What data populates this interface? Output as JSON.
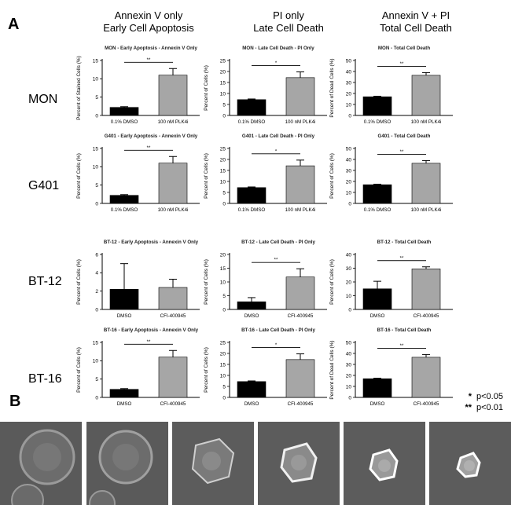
{
  "panel_labels": {
    "a": "A",
    "b": "B"
  },
  "columns": [
    {
      "line1": "Annexin V only",
      "line2": "Early Cell Apoptosis"
    },
    {
      "line1": "PI only",
      "line2": "Late Cell Death"
    },
    {
      "line1": "Annexin V + PI",
      "line2": "Total Cell Death"
    }
  ],
  "rows": [
    "MON",
    "G401",
    "BT-12",
    "BT-16"
  ],
  "legend": [
    {
      "stars": "*",
      "label": "p<0.05"
    },
    {
      "stars": "**",
      "label": "p<0.01"
    }
  ],
  "colors": {
    "control": "#000000",
    "treated": "#a6a6a6"
  },
  "chart_data": [
    {
      "type": "bar",
      "title": "MON - Early Apoptosis - Annexin V Only",
      "ylabel": "Percent of Stained Cells (%)",
      "categories": [
        "0.1% DMSO",
        "100 nM PLK4i"
      ],
      "values": [
        2.2,
        11
      ],
      "errors": [
        0.2,
        1.8
      ],
      "ylim": [
        0,
        15
      ],
      "yticks": [
        0,
        5,
        10,
        15
      ],
      "sig": "**"
    },
    {
      "type": "bar",
      "title": "MON - Late Cell Death - PI Only",
      "ylabel": "Percent of Cells (%)",
      "categories": [
        "0.1% DMSO",
        "100 nM PLK4i"
      ],
      "values": [
        7.2,
        17.2
      ],
      "errors": [
        0.3,
        2.6
      ],
      "ylim": [
        0,
        25
      ],
      "yticks": [
        0,
        5,
        10,
        15,
        20,
        25
      ],
      "sig": "*"
    },
    {
      "type": "bar",
      "title": "MON - Total Cell Death",
      "ylabel": "Percent of Dead Cells (%)",
      "categories": [
        "0.1% DMSO",
        "100 nM PLK4i"
      ],
      "values": [
        17,
        36.5
      ],
      "errors": [
        0.5,
        2.5
      ],
      "ylim": [
        0,
        50
      ],
      "yticks": [
        0,
        10,
        20,
        30,
        40,
        50
      ],
      "sig": "**"
    },
    {
      "type": "bar",
      "title": "G401 - Early Apoptosis - Annexin V Only",
      "ylabel": "Percent of Cells (%)",
      "categories": [
        "0.1% DMSO",
        "100 nM PLK4i"
      ],
      "values": [
        2.2,
        11
      ],
      "errors": [
        0.2,
        1.8
      ],
      "ylim": [
        0,
        15
      ],
      "yticks": [
        0,
        5,
        10,
        15
      ],
      "sig": "**"
    },
    {
      "type": "bar",
      "title": "G401 - Late Cell Death - PI Only",
      "ylabel": "Percent of Cells (%)",
      "categories": [
        "0.1% DMSO",
        "100 nM PLK4i"
      ],
      "values": [
        7.2,
        17.1
      ],
      "errors": [
        0.3,
        2.6
      ],
      "ylim": [
        0,
        25
      ],
      "yticks": [
        0,
        5,
        10,
        15,
        20,
        25
      ],
      "sig": "*"
    },
    {
      "type": "bar",
      "title": "G401 - Total Cell Death",
      "ylabel": "Percent of Cells (%)",
      "categories": [
        "0.1% DMSO",
        "100 nM PLK4i"
      ],
      "values": [
        17,
        36.5
      ],
      "errors": [
        0.5,
        2.5
      ],
      "ylim": [
        0,
        50
      ],
      "yticks": [
        0,
        10,
        20,
        30,
        40,
        50
      ],
      "sig": "**"
    },
    {
      "type": "bar",
      "title": "BT-12 - Early Apoptosis - Annexin V Only",
      "ylabel": "Percent of Cells (%)",
      "categories": [
        "DMSO",
        "CFI-400945"
      ],
      "values": [
        2.2,
        2.4
      ],
      "errors": [
        2.8,
        0.9
      ],
      "ylim": [
        0,
        6
      ],
      "yticks": [
        0,
        2,
        4,
        6
      ],
      "sig": ""
    },
    {
      "type": "bar",
      "title": "BT-12 - Late Cell Death - PI Only",
      "ylabel": "Percent of Cells (%)",
      "categories": [
        "DMSO",
        "CFI-400945"
      ],
      "values": [
        2.8,
        11.8
      ],
      "errors": [
        1.5,
        3
      ],
      "ylim": [
        0,
        20
      ],
      "yticks": [
        0,
        5,
        10,
        15,
        20
      ],
      "sig": "**"
    },
    {
      "type": "bar",
      "title": "BT-12 - Total Cell Death",
      "ylabel": "Percent of Cells (%)",
      "categories": [
        "DMSO",
        "CFI-400945"
      ],
      "values": [
        15,
        29.5
      ],
      "errors": [
        5.5,
        1.5
      ],
      "ylim": [
        0,
        40
      ],
      "yticks": [
        0,
        10,
        20,
        30,
        40
      ],
      "sig": "**"
    },
    {
      "type": "bar",
      "title": "BT-16 - Early Apoptosis - Annexin V Only",
      "ylabel": "Percent of Cells (%)",
      "categories": [
        "DMSO",
        "CFI-400945"
      ],
      "values": [
        2.2,
        11
      ],
      "errors": [
        0.2,
        1.8
      ],
      "ylim": [
        0,
        15
      ],
      "yticks": [
        0,
        5,
        10,
        15
      ],
      "sig": "**"
    },
    {
      "type": "bar",
      "title": "BT-16 - Late Cell Death - PI Only",
      "ylabel": "Percent of Cells (%)",
      "categories": [
        "DMSO",
        "CFI-400945"
      ],
      "values": [
        7.2,
        17.2
      ],
      "errors": [
        0.3,
        2.6
      ],
      "ylim": [
        0,
        25
      ],
      "yticks": [
        0,
        5,
        10,
        15,
        20,
        25
      ],
      "sig": "*"
    },
    {
      "type": "bar",
      "title": "BT-16 - Total Cell Death",
      "ylabel": "Percent of Dead Cells (%)",
      "categories": [
        "DMSO",
        "CFI-400945"
      ],
      "values": [
        17,
        36.5
      ],
      "errors": [
        0.5,
        2.5
      ],
      "ylim": [
        0,
        50
      ],
      "yticks": [
        0,
        10,
        20,
        30,
        40,
        50
      ],
      "sig": "**"
    }
  ]
}
